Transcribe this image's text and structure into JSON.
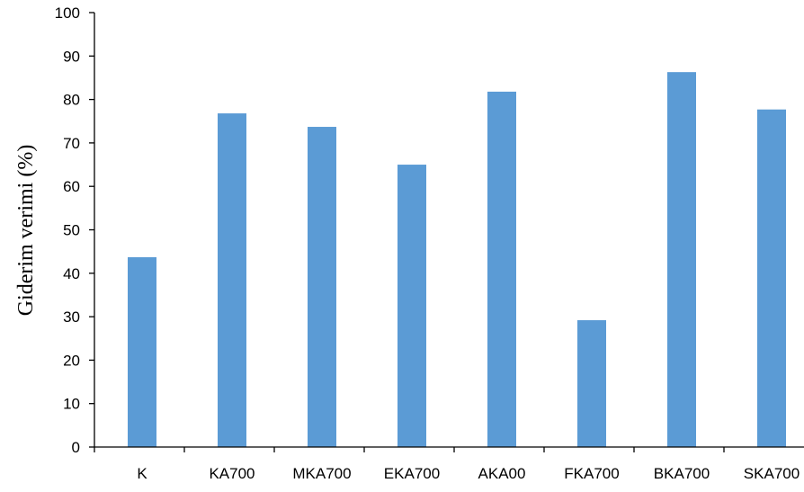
{
  "chart_data": {
    "type": "bar",
    "title": "",
    "xlabel": "",
    "ylabel": "Giderim verimi (%)",
    "categories": [
      "K",
      "KA700",
      "MKA700",
      "EKA700",
      "AKA00",
      "FKA700",
      "BKA700",
      "SKA700"
    ],
    "values": [
      43.7,
      76.8,
      73.7,
      65.0,
      81.8,
      29.2,
      86.3,
      77.7
    ],
    "ylim": [
      0,
      100
    ],
    "yticks": [
      "0",
      "10",
      "20",
      "30",
      "40",
      "50",
      "60",
      "70",
      "80",
      "90",
      "100"
    ],
    "grid": false,
    "legend": "none",
    "bar_color": "#5b9bd5",
    "axis_color": "#000000"
  }
}
